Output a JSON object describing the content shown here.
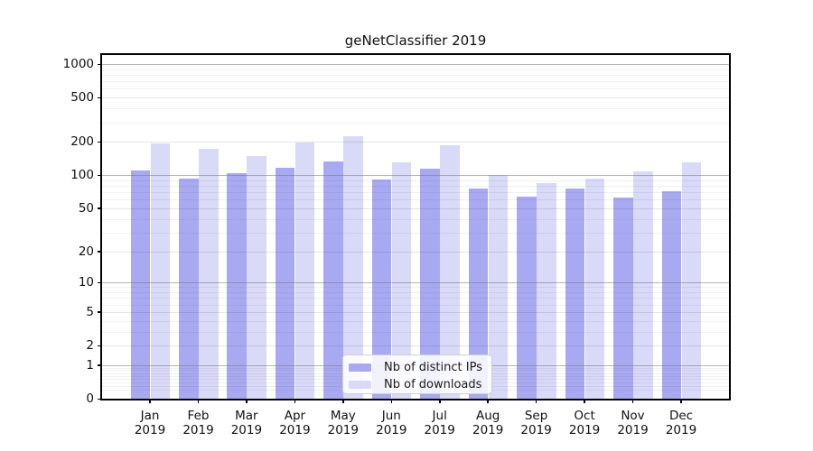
{
  "title": "geNetClassifier 2019",
  "chart_data": {
    "type": "bar",
    "title": "geNetClassifier 2019",
    "categories": [
      "Jan",
      "Feb",
      "Mar",
      "Apr",
      "May",
      "Jun",
      "Jul",
      "Aug",
      "Sep",
      "Oct",
      "Nov",
      "Dec"
    ],
    "x_year_label": "2019",
    "series": [
      {
        "name": "Nb of distinct IPs",
        "color": "#a9a9f1",
        "values": [
          111,
          94,
          105,
          117,
          133,
          91,
          115,
          75,
          64,
          75,
          63,
          71
        ]
      },
      {
        "name": "Nb of downloads",
        "color": "#d9d9f8",
        "values": [
          192,
          172,
          150,
          196,
          223,
          130,
          185,
          100,
          85,
          94,
          108,
          131
        ]
      }
    ],
    "y_ticks": [
      0,
      1,
      2,
      5,
      10,
      20,
      50,
      100,
      200,
      500,
      1000
    ],
    "y_scale": "log10(value+1)",
    "ylim": [
      0,
      1000
    ],
    "grid": true,
    "legend_position": "lower center",
    "axis_color": "#000000",
    "major_decades": [
      1,
      10,
      100,
      1000
    ]
  }
}
